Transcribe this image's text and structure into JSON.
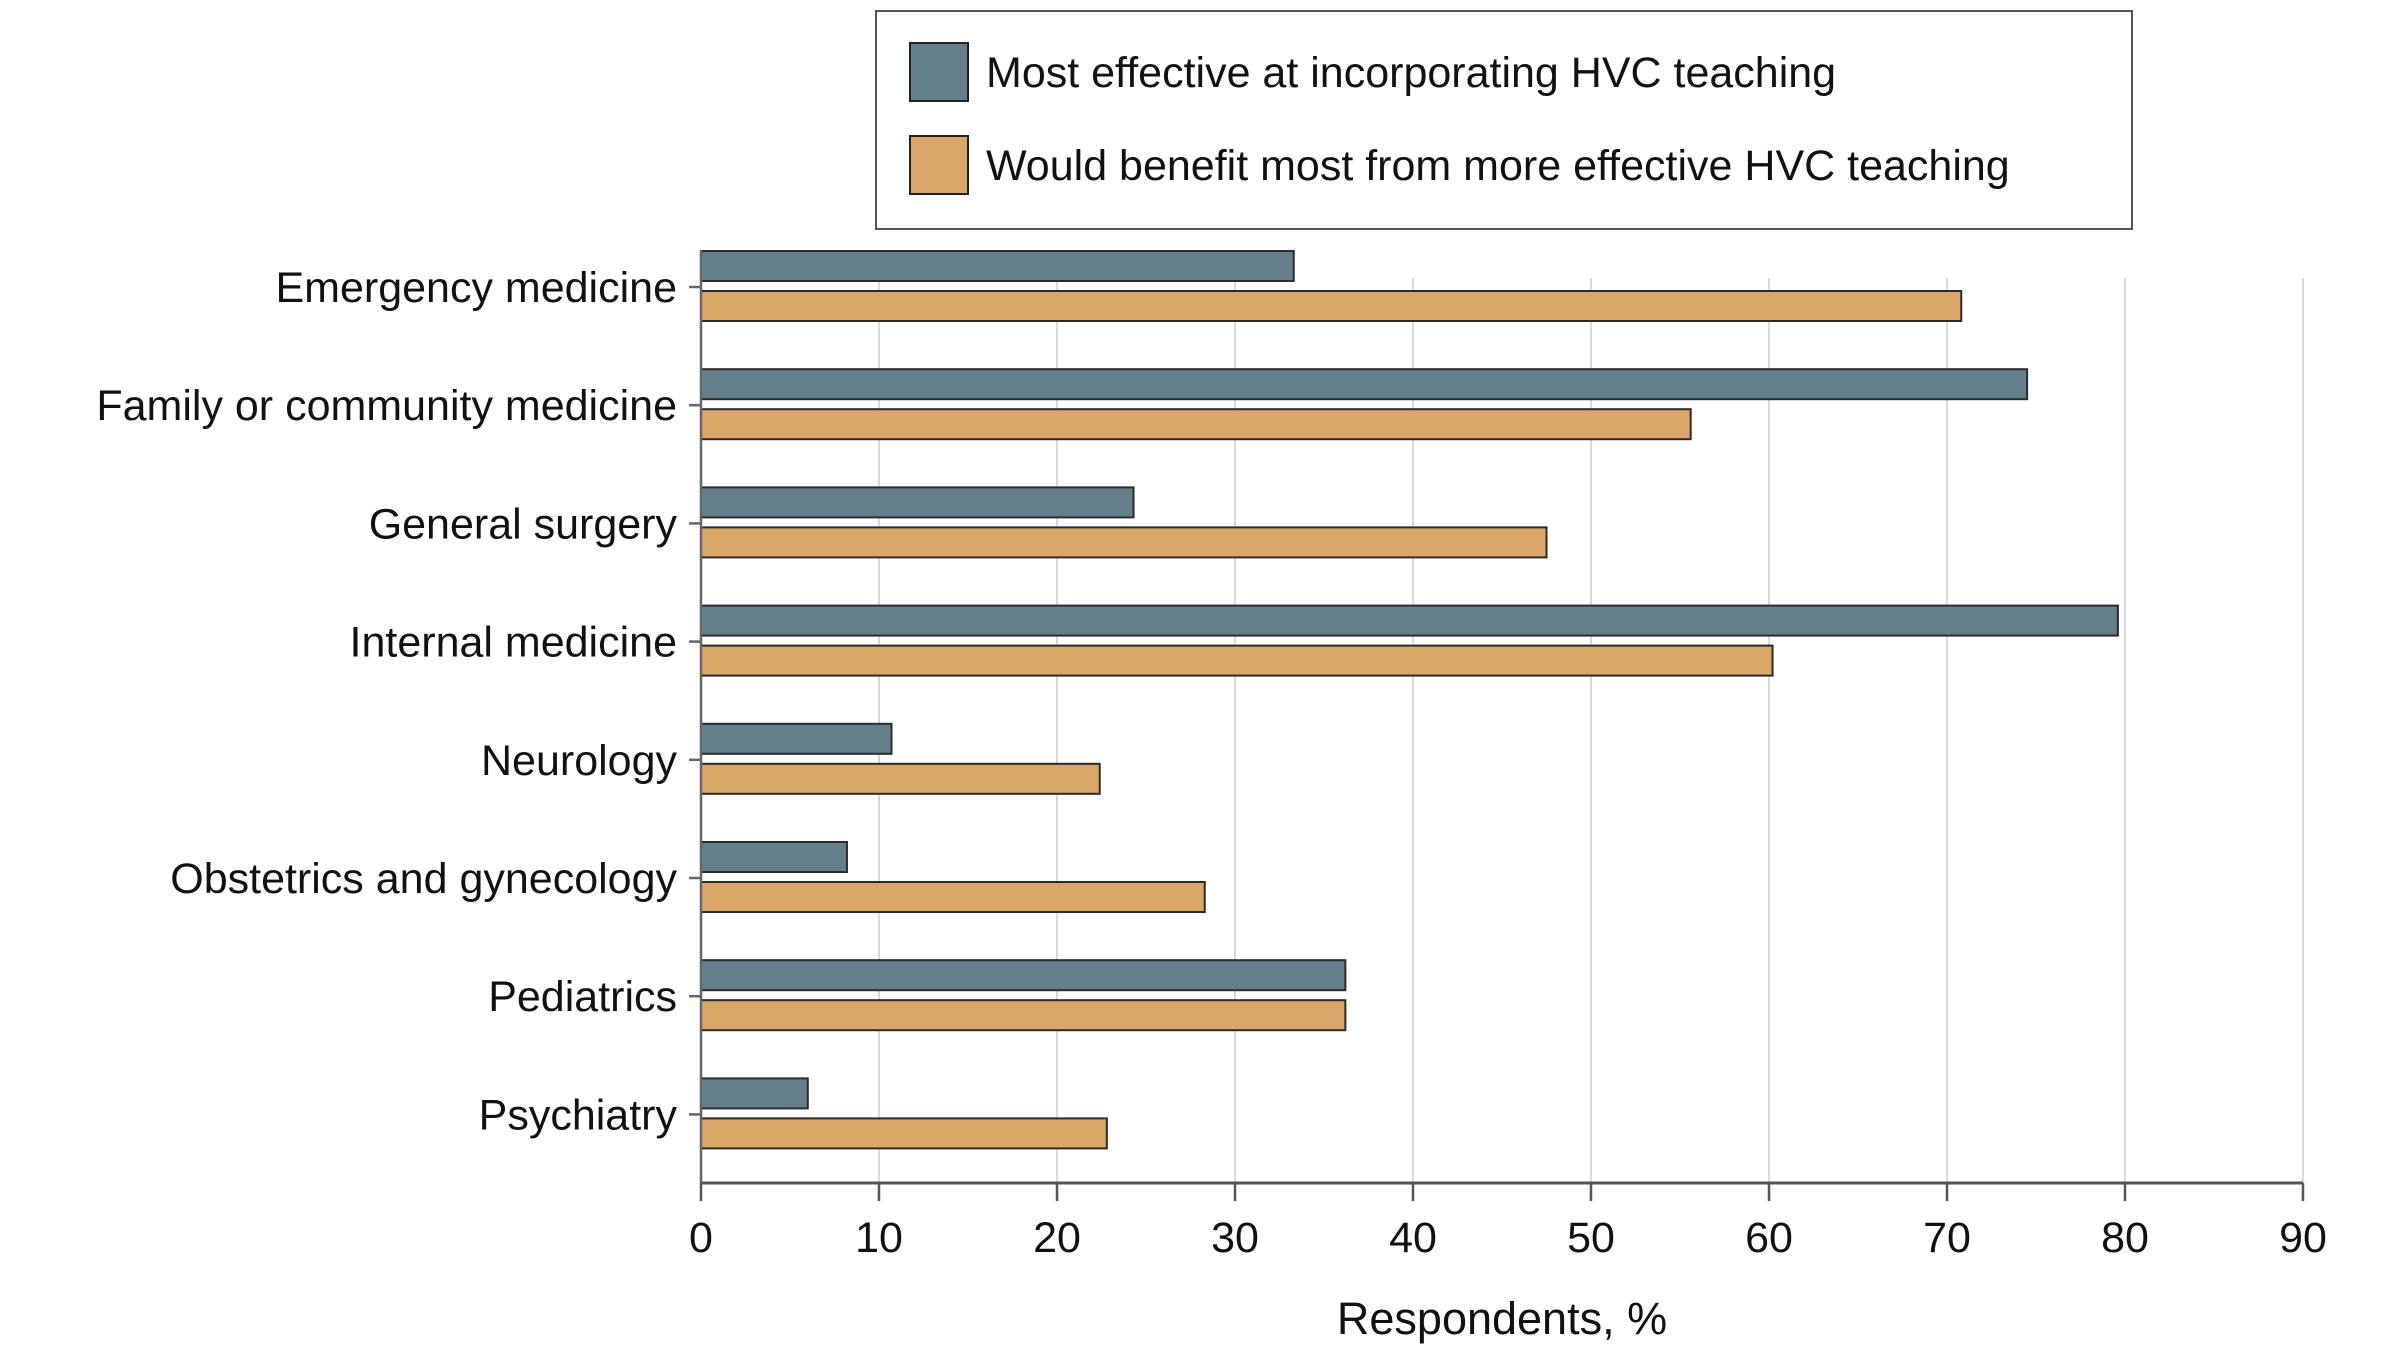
{
  "chart_data": {
    "type": "bar",
    "orientation": "horizontal",
    "title": "",
    "xlabel": "Respondents, %",
    "ylabel": "",
    "xlim": [
      0,
      90
    ],
    "x_ticks": [
      0,
      10,
      20,
      30,
      40,
      50,
      60,
      70,
      80,
      90
    ],
    "x_tick_labels": [
      "0",
      "10",
      "20",
      "30",
      "40",
      "50",
      "60",
      "70",
      "80",
      "90"
    ],
    "grid": "vertical gridlines on",
    "legend_position": "top-right",
    "categories": [
      "Emergency medicine",
      "Family or community medicine",
      "General surgery",
      "Internal medicine",
      "Neurology",
      "Obstetrics and gynecology",
      "Pediatrics",
      "Psychiatry"
    ],
    "series": [
      {
        "name": "Most effective at incorporating HVC teaching",
        "color": "#647f8b",
        "values": [
          33.3,
          74.5,
          24.3,
          79.6,
          10.7,
          8.2,
          36.2,
          6.0
        ]
      },
      {
        "name": "Would benefit most from more effective HVC teaching",
        "color": "#dba669",
        "values": [
          70.8,
          55.6,
          47.5,
          60.2,
          22.4,
          28.3,
          36.2,
          22.8
        ]
      }
    ]
  }
}
